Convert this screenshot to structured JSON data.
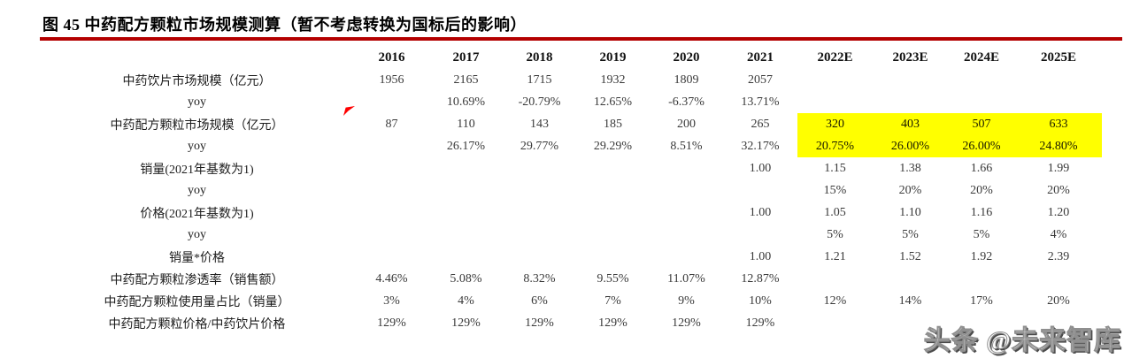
{
  "figure": {
    "title": "图 45 中药配方颗粒市场规模测算（暂不考虑转换为国标后的影响）"
  },
  "colors": {
    "rule_red": "#b40000",
    "highlight_yellow": "#ffff00",
    "marker_red": "#ff0000"
  },
  "watermark": {
    "text": "头条 @未来智库"
  },
  "chart_data": {
    "type": "table",
    "title": "中药配方颗粒市场规模测算（暂不考虑转换为国标后的影响）",
    "columns": [
      "2016",
      "2017",
      "2018",
      "2019",
      "2020",
      "2021",
      "2022E",
      "2023E",
      "2024E",
      "2025E"
    ],
    "rows": [
      {
        "label": "中药饮片市场规模（亿元）",
        "values": [
          "1956",
          "2165",
          "1715",
          "1932",
          "1809",
          "2057",
          "",
          "",
          "",
          ""
        ]
      },
      {
        "label": "yoy",
        "values": [
          "",
          "10.69%",
          "-20.79%",
          "12.65%",
          "-6.37%",
          "13.71%",
          "",
          "",
          "",
          ""
        ]
      },
      {
        "label": "中药配方颗粒市场规模（亿元）",
        "values": [
          "87",
          "110",
          "143",
          "185",
          "200",
          "265",
          "320",
          "403",
          "507",
          "633"
        ],
        "highlight_cols": [
          6,
          7,
          8,
          9
        ],
        "marker": "red-arrow"
      },
      {
        "label": "yoy",
        "values": [
          "",
          "26.17%",
          "29.77%",
          "29.29%",
          "8.51%",
          "32.17%",
          "20.75%",
          "26.00%",
          "26.00%",
          "24.80%"
        ],
        "highlight_cols": [
          6,
          7,
          8,
          9
        ]
      },
      {
        "label": "销量(2021年基数为1)",
        "values": [
          "",
          "",
          "",
          "",
          "",
          "1.00",
          "1.15",
          "1.38",
          "1.66",
          "1.99"
        ]
      },
      {
        "label": "yoy",
        "values": [
          "",
          "",
          "",
          "",
          "",
          "",
          "15%",
          "20%",
          "20%",
          "20%"
        ]
      },
      {
        "label": "价格(2021年基数为1)",
        "values": [
          "",
          "",
          "",
          "",
          "",
          "1.00",
          "1.05",
          "1.10",
          "1.16",
          "1.20"
        ]
      },
      {
        "label": "yoy",
        "values": [
          "",
          "",
          "",
          "",
          "",
          "",
          "5%",
          "5%",
          "5%",
          "4%"
        ]
      },
      {
        "label": "销量*价格",
        "values": [
          "",
          "",
          "",
          "",
          "",
          "1.00",
          "1.21",
          "1.52",
          "1.92",
          "2.39"
        ]
      },
      {
        "label": "中药配方颗粒渗透率（销售额）",
        "values": [
          "4.46%",
          "5.08%",
          "8.32%",
          "9.55%",
          "11.07%",
          "12.87%",
          "",
          "",
          "",
          ""
        ]
      },
      {
        "label": "中药配方颗粒使用量占比（销量）",
        "values": [
          "3%",
          "4%",
          "6%",
          "7%",
          "9%",
          "10%",
          "12%",
          "14%",
          "17%",
          "20%"
        ]
      },
      {
        "label": "中药配方颗粒价格/中药饮片价格",
        "values": [
          "129%",
          "129%",
          "129%",
          "129%",
          "129%",
          "129%",
          "",
          "",
          "",
          ""
        ]
      }
    ]
  }
}
